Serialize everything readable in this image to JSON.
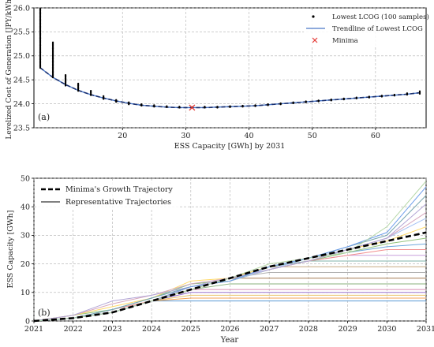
{
  "chart_data": [
    {
      "type": "scatter",
      "panel_label": "(a)",
      "xlabel": "ESS Capacity [GWh] by 2031",
      "ylabel": "Levelized Cost of Generation [JPY/kWh]",
      "xlim": [
        6,
        68
      ],
      "ylim": [
        23.5,
        26.0
      ],
      "xticks": [
        20,
        30,
        40,
        50,
        60
      ],
      "yticks": [
        23.5,
        24.0,
        24.5,
        25.0,
        25.5,
        26.0
      ],
      "grid": true,
      "legend_position": "top-right",
      "legend": [
        {
          "key": "samples",
          "label": "Lowest LCOG (100 samples)"
        },
        {
          "key": "trend",
          "label": "Trendline of Lowest LCOG"
        },
        {
          "key": "minima",
          "label": "Minima"
        }
      ],
      "scatter_clusters": [
        {
          "x": 7,
          "y_min": 24.75,
          "y_max": 25.98
        },
        {
          "x": 9,
          "y_min": 24.55,
          "y_max": 25.28
        },
        {
          "x": 11,
          "y_min": 24.38,
          "y_max": 24.6
        },
        {
          "x": 13,
          "y_min": 24.27,
          "y_max": 24.42
        },
        {
          "x": 15,
          "y_min": 24.18,
          "y_max": 24.27
        },
        {
          "x": 17,
          "y_min": 24.1,
          "y_max": 24.16
        },
        {
          "x": 19,
          "y_min": 24.04,
          "y_max": 24.08
        },
        {
          "x": 21,
          "y_min": 23.99,
          "y_max": 24.03
        },
        {
          "x": 23,
          "y_min": 23.96,
          "y_max": 23.99
        },
        {
          "x": 25,
          "y_min": 23.94,
          "y_max": 23.97
        },
        {
          "x": 27,
          "y_min": 23.93,
          "y_max": 23.95
        },
        {
          "x": 29,
          "y_min": 23.92,
          "y_max": 23.94
        },
        {
          "x": 31,
          "y_min": 23.92,
          "y_max": 23.93
        },
        {
          "x": 33,
          "y_min": 23.92,
          "y_max": 23.94
        },
        {
          "x": 35,
          "y_min": 23.92,
          "y_max": 23.94
        },
        {
          "x": 37,
          "y_min": 23.93,
          "y_max": 23.95
        },
        {
          "x": 39,
          "y_min": 23.94,
          "y_max": 23.96
        },
        {
          "x": 41,
          "y_min": 23.95,
          "y_max": 23.97
        },
        {
          "x": 43,
          "y_min": 23.97,
          "y_max": 23.99
        },
        {
          "x": 45,
          "y_min": 23.99,
          "y_max": 24.01
        },
        {
          "x": 47,
          "y_min": 24.01,
          "y_max": 24.03
        },
        {
          "x": 49,
          "y_min": 24.03,
          "y_max": 24.05
        },
        {
          "x": 51,
          "y_min": 24.05,
          "y_max": 24.07
        },
        {
          "x": 53,
          "y_min": 24.07,
          "y_max": 24.09
        },
        {
          "x": 55,
          "y_min": 24.09,
          "y_max": 24.11
        },
        {
          "x": 57,
          "y_min": 24.11,
          "y_max": 24.13
        },
        {
          "x": 59,
          "y_min": 24.13,
          "y_max": 24.15
        },
        {
          "x": 61,
          "y_min": 24.15,
          "y_max": 24.17
        },
        {
          "x": 63,
          "y_min": 24.17,
          "y_max": 24.19
        },
        {
          "x": 65,
          "y_min": 24.19,
          "y_max": 24.22
        },
        {
          "x": 67,
          "y_min": 24.21,
          "y_max": 24.26
        }
      ],
      "trendline": {
        "x": [
          7,
          9,
          11,
          13,
          15,
          17,
          19,
          21,
          23,
          25,
          27,
          29,
          31,
          33,
          35,
          37,
          39,
          41,
          43,
          45,
          47,
          49,
          51,
          53,
          55,
          57,
          59,
          61,
          63,
          65,
          67
        ],
        "y": [
          24.75,
          24.55,
          24.4,
          24.28,
          24.19,
          24.12,
          24.06,
          24.01,
          23.97,
          23.95,
          23.93,
          23.92,
          23.92,
          23.92,
          23.93,
          23.94,
          23.95,
          23.96,
          23.98,
          24.0,
          24.02,
          24.04,
          24.06,
          24.08,
          24.1,
          24.12,
          24.14,
          24.16,
          24.18,
          24.2,
          24.23
        ]
      },
      "minima": {
        "x": 31,
        "y": 23.92
      },
      "colors": {
        "samples": "#000000",
        "trend": "#4a78c8",
        "trend_dash": "#1a2f6e",
        "minima": "#e53935"
      }
    },
    {
      "type": "line",
      "panel_label": "(b)",
      "xlabel": "Year",
      "ylabel": "ESS Capacity [GWh]",
      "xlim": [
        2021,
        2031
      ],
      "ylim": [
        0,
        50
      ],
      "xticks": [
        2021,
        2022,
        2023,
        2024,
        2025,
        2026,
        2027,
        2028,
        2029,
        2030,
        2031
      ],
      "yticks": [
        0,
        10,
        20,
        30,
        40,
        50
      ],
      "grid": true,
      "legend_position": "top-left",
      "legend": [
        {
          "key": "minima_traj",
          "label": "Minima's Growth Trajectory"
        },
        {
          "key": "representative",
          "label": "Representative Trajectories"
        }
      ],
      "minima_trajectory": {
        "x": [
          2021,
          2022,
          2023,
          2024,
          2025,
          2026,
          2027,
          2028,
          2029,
          2030,
          2031
        ],
        "y": [
          0,
          1,
          3,
          7,
          11,
          15,
          19,
          22,
          25,
          28,
          31
        ]
      },
      "representative_trajectories": [
        {
          "color": "#5b9bd5",
          "y": [
            0,
            1,
            3,
            7,
            7,
            7,
            7,
            7,
            7,
            7,
            7
          ]
        },
        {
          "color": "#f4a259",
          "y": [
            0,
            1,
            3,
            7,
            8,
            8,
            8,
            8,
            8,
            8,
            8
          ]
        },
        {
          "color": "#e9c46a",
          "y": [
            0,
            1,
            3,
            7,
            9,
            9,
            9,
            9,
            9,
            9,
            9
          ]
        },
        {
          "color": "#9b72cf",
          "y": [
            0,
            1,
            3,
            7,
            10,
            10,
            10,
            10,
            10,
            10,
            10
          ]
        },
        {
          "color": "#d98cb3",
          "y": [
            0,
            1,
            3,
            7,
            11,
            11,
            11,
            11,
            11,
            11,
            11
          ]
        },
        {
          "color": "#8ab17d",
          "y": [
            0,
            1,
            3,
            7,
            11,
            13,
            13,
            13,
            13,
            13,
            13
          ]
        },
        {
          "color": "#a67c52",
          "y": [
            0,
            1,
            3,
            7,
            11,
            15,
            15,
            15,
            15,
            15,
            15
          ]
        },
        {
          "color": "#b0b0b0",
          "y": [
            0,
            1,
            3,
            7,
            11,
            15,
            17,
            17,
            17,
            17,
            17
          ]
        },
        {
          "color": "#c5a880",
          "y": [
            0,
            1,
            3,
            7,
            11,
            15,
            19,
            19,
            19,
            19,
            19
          ]
        },
        {
          "color": "#7fb3a8",
          "y": [
            0,
            1,
            3,
            7,
            11,
            15,
            19,
            21,
            21,
            21,
            21
          ]
        },
        {
          "color": "#c9a0dc",
          "y": [
            0,
            1,
            3,
            7,
            12,
            14,
            18,
            21,
            23,
            23,
            23
          ]
        },
        {
          "color": "#f28e8e",
          "y": [
            0,
            1,
            4,
            7,
            12,
            14,
            18,
            21,
            23,
            25,
            25
          ]
        },
        {
          "color": "#6fa8dc",
          "y": [
            0,
            1,
            4,
            8,
            13,
            14,
            19,
            22,
            24,
            26,
            27
          ]
        },
        {
          "color": "#93c47d",
          "y": [
            0,
            2,
            4,
            8,
            13,
            14,
            18,
            21,
            24,
            27,
            29
          ]
        },
        {
          "color": "#ffd966",
          "y": [
            0,
            2,
            5,
            8,
            14,
            15,
            19,
            22,
            25,
            28,
            33
          ]
        },
        {
          "color": "#a4c2f4",
          "y": [
            0,
            1,
            4,
            8,
            12,
            14,
            18,
            22,
            25,
            29,
            36
          ]
        },
        {
          "color": "#d5a6bd",
          "y": [
            0,
            2,
            6,
            9,
            13,
            15,
            18,
            21,
            25,
            29,
            38
          ]
        },
        {
          "color": "#b4a7d6",
          "y": [
            0,
            2,
            7,
            9,
            12,
            15,
            18,
            21,
            25,
            29,
            41
          ]
        },
        {
          "color": "#76a5af",
          "y": [
            0,
            1,
            4,
            8,
            12,
            14,
            19,
            22,
            26,
            30,
            44
          ]
        },
        {
          "color": "#6d9eeb",
          "y": [
            0,
            1,
            3,
            7,
            12,
            14,
            19,
            22,
            26,
            31,
            47
          ]
        },
        {
          "color": "#b6d7a8",
          "y": [
            0,
            1,
            3,
            7,
            11,
            15,
            20,
            22,
            24,
            33,
            49
          ]
        }
      ],
      "colors": {
        "minima_traj": "#000000",
        "representative": "#808080"
      }
    }
  ]
}
